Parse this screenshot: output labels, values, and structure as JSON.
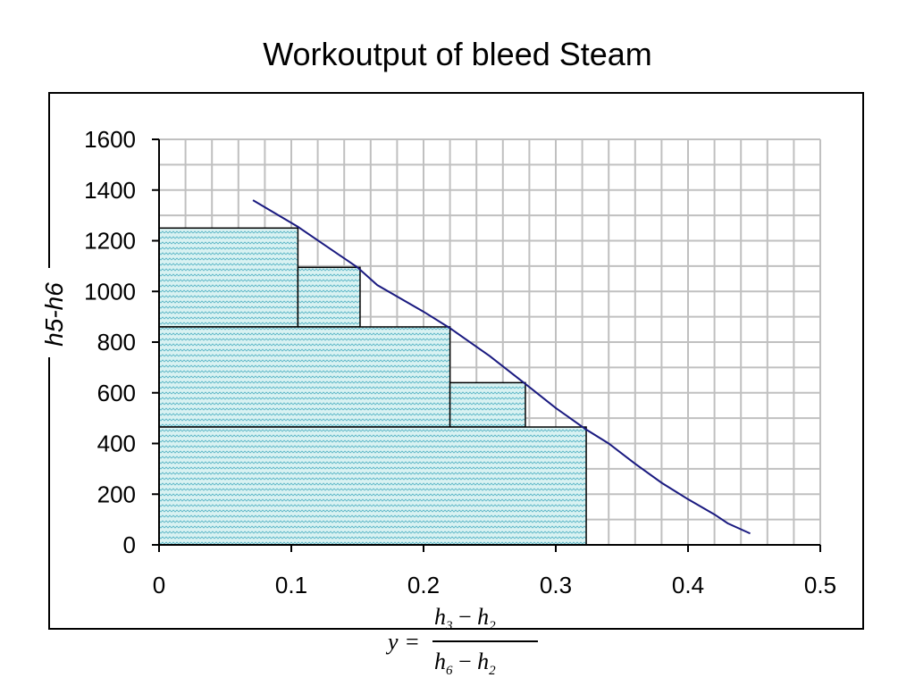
{
  "chart_data": {
    "type": "area",
    "title": "Workoutput of bleed Steam",
    "ylabel": "h5-h6",
    "xlabel": {
      "lhs": "y",
      "numerator": [
        "h",
        "3",
        " − ",
        "h",
        "2"
      ],
      "denominator": [
        "h",
        "6",
        " − ",
        "h",
        "2"
      ]
    },
    "xlim": [
      0,
      0.5
    ],
    "ylim": [
      0,
      1600
    ],
    "x_ticks": [
      "0",
      "0.1",
      "0.2",
      "0.3",
      "0.4",
      "0.5"
    ],
    "y_ticks": [
      "0",
      "200",
      "400",
      "600",
      "800",
      "1000",
      "1200",
      "1400",
      "1600"
    ],
    "grid": true,
    "grid_minor_x_step": 0.02,
    "grid_minor_y_step": 100,
    "curve": {
      "x": [
        0.071,
        0.105,
        0.15,
        0.165,
        0.2,
        0.22,
        0.25,
        0.277,
        0.3,
        0.323,
        0.34,
        0.36,
        0.38,
        0.4,
        0.42,
        0.43,
        0.447
      ],
      "y": [
        1360,
        1255,
        1095,
        1025,
        920,
        855,
        745,
        635,
        540,
        455,
        400,
        320,
        245,
        180,
        120,
        85,
        45
      ]
    },
    "bars": [
      {
        "x0": 0,
        "x1": 0.105,
        "y0": 860,
        "y1": 1250
      },
      {
        "x0": 0.105,
        "x1": 0.152,
        "y0": 860,
        "y1": 1095
      },
      {
        "x0": 0,
        "x1": 0.22,
        "y0": 465,
        "y1": 860
      },
      {
        "x0": 0.22,
        "x1": 0.277,
        "y0": 465,
        "y1": 640
      },
      {
        "x0": 0,
        "x1": 0.323,
        "y0": 0,
        "y1": 465
      }
    ],
    "colors": {
      "curve": "#1a1a80",
      "bar_fill": "#d9f2f2",
      "bar_pattern": "#5fb8c8",
      "grid": "#c0c0c0",
      "axis": "#000000"
    }
  }
}
